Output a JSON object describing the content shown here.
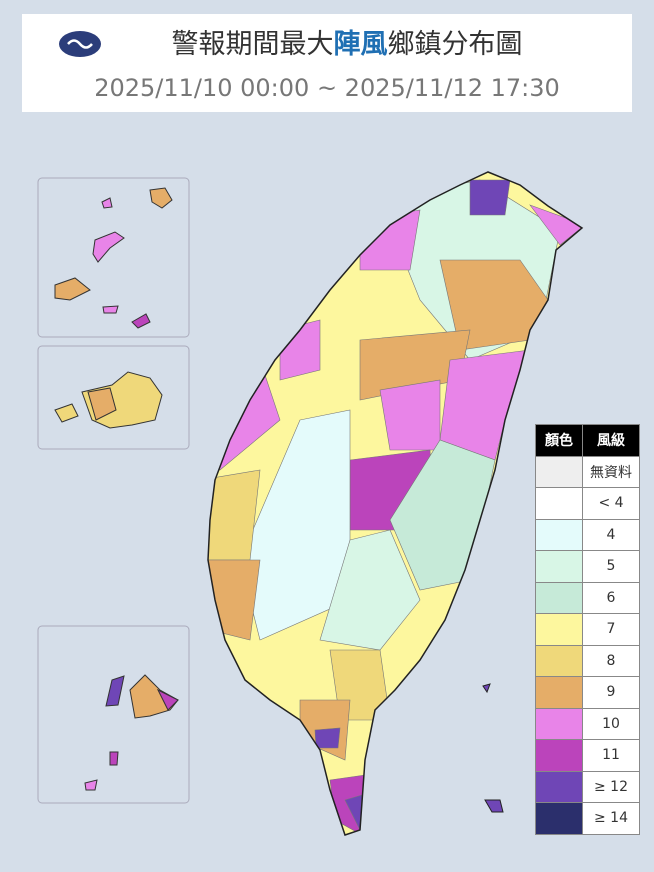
{
  "header": {
    "title_parts": [
      "警報期間最大",
      "陣風",
      "鄉鎮分布圖"
    ],
    "period": "2025/11/10 00:00 ~ 2025/11/12 17:30"
  },
  "legend": {
    "headers": [
      "顏色",
      "風級"
    ],
    "rows": [
      {
        "label": "無資料",
        "color": "#eeeeee"
      },
      {
        "label": "< 4",
        "color": "#ffffff"
      },
      {
        "label": "4",
        "color": "#e4fbfb"
      },
      {
        "label": "5",
        "color": "#d8f6e6"
      },
      {
        "label": "6",
        "color": "#c6ead8"
      },
      {
        "label": "7",
        "color": "#fdf79e"
      },
      {
        "label": "8",
        "color": "#efd87a"
      },
      {
        "label": "9",
        "color": "#e5ad68"
      },
      {
        "label": "10",
        "color": "#e884e8"
      },
      {
        "label": "11",
        "color": "#bb44bb"
      },
      {
        "label": "≥ 12",
        "color": "#6f46b6"
      },
      {
        "label": "≥ 14",
        "color": "#2b2f6c"
      }
    ]
  }
}
